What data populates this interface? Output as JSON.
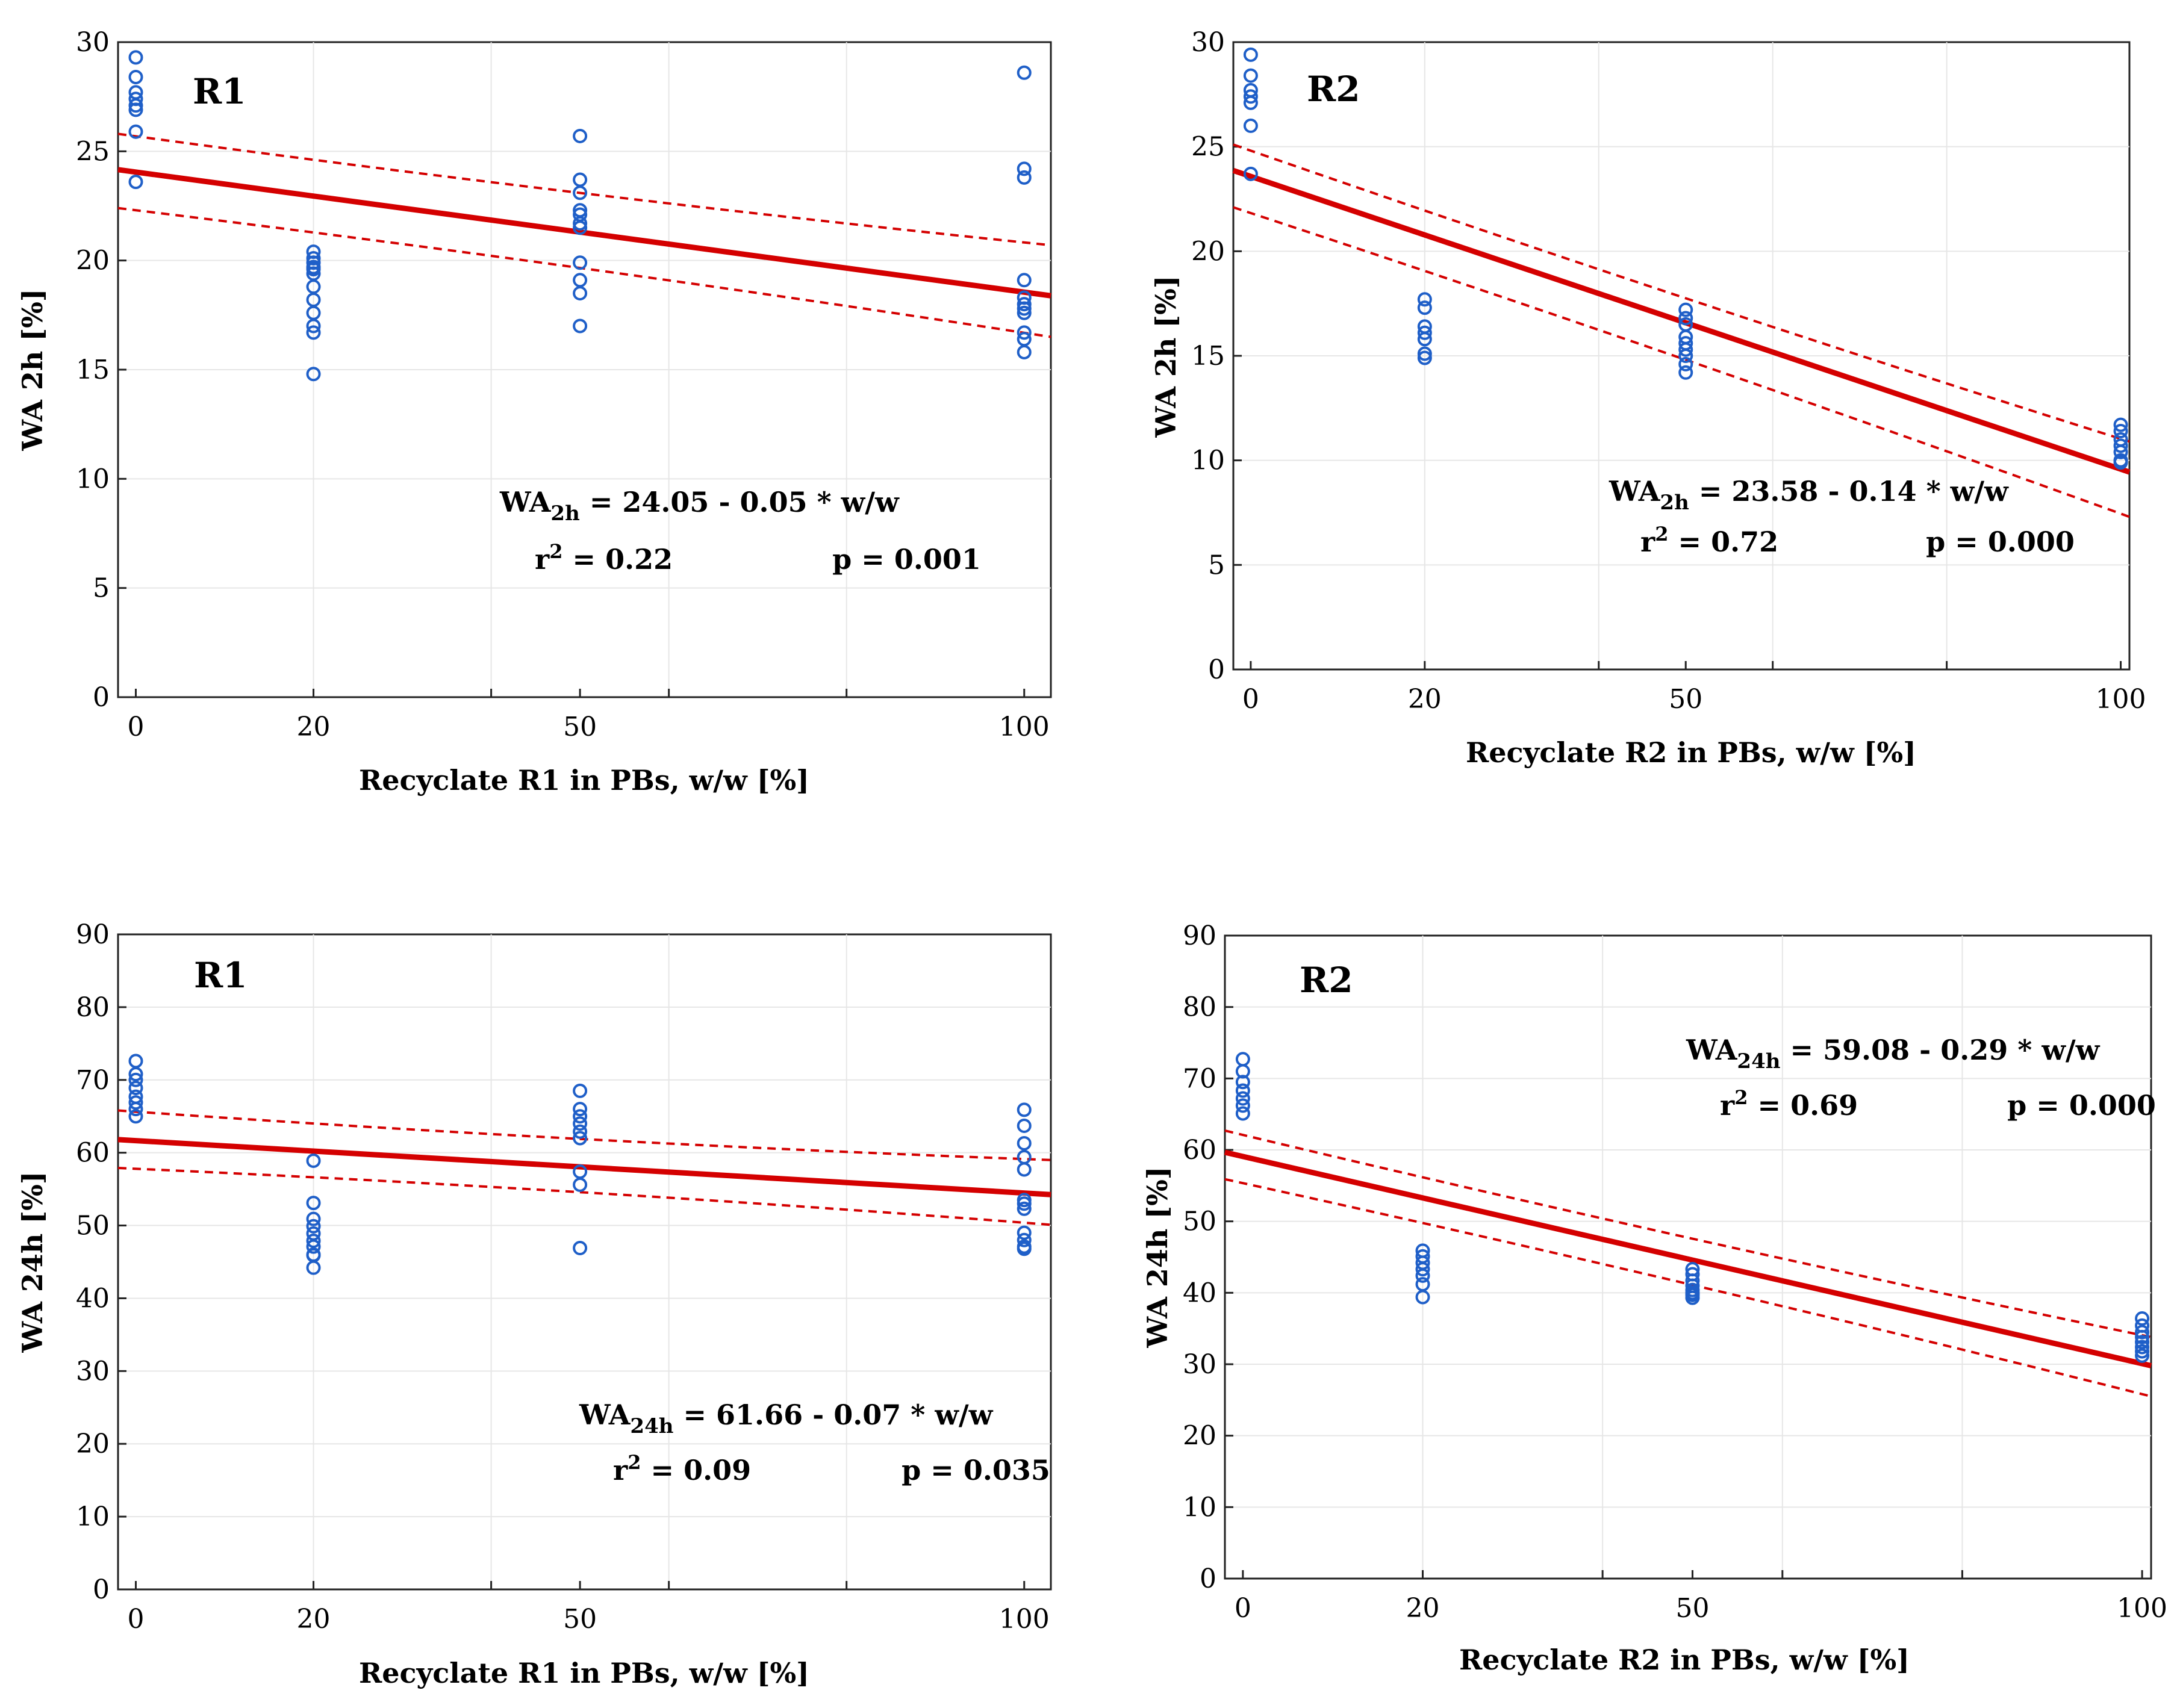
{
  "colors": {
    "fit": "#d40000",
    "ci": "#d40000",
    "points": "#1f5fc8",
    "grid": "#e6e6e6",
    "axis": "#222222"
  },
  "chart_data": [
    {
      "type": "scatter",
      "panel": "R1",
      "title": "R1",
      "xlabel": "Recyclate R1 in PBs, w/w  [%]",
      "ylabel": "WA  2h [%]",
      "xlim": [
        -2,
        103
      ],
      "ylim": [
        0,
        30
      ],
      "yticks": [
        0,
        5,
        10,
        15,
        20,
        25,
        30
      ],
      "xticks": [
        0,
        20,
        50,
        100
      ],
      "fit": {
        "intercept": 24.05,
        "slope": -0.055
      },
      "ci": {
        "upper": [
          25.8,
          20.7
        ],
        "lower": [
          22.4,
          16.5
        ]
      },
      "points": {
        "0": [
          29.3,
          28.4,
          27.7,
          27.4,
          27.1,
          26.9,
          25.9,
          23.6
        ],
        "20": [
          20.4,
          20.1,
          19.9,
          19.7,
          19.6,
          19.4,
          18.8,
          18.2,
          17.6,
          17.0,
          16.7,
          14.8
        ],
        "50": [
          25.7,
          23.7,
          23.1,
          22.3,
          22.1,
          21.7,
          21.5,
          19.9,
          19.1,
          18.5,
          17.0
        ],
        "100": [
          28.6,
          24.2,
          23.8,
          19.1,
          18.3,
          18.0,
          17.8,
          17.6,
          16.7,
          16.4,
          15.8
        ]
      },
      "equation": {
        "lhs": "WA",
        "sub": "2h",
        "rhs": " = 24.05 - 0.05 * w/w"
      },
      "stats": {
        "r": "r",
        "sup": "2",
        "r_value": " = 0.22",
        "p": "p = 0.001"
      }
    },
    {
      "type": "scatter",
      "panel": "R2",
      "title": "R2",
      "xlabel": "Recyclate R2 in PBs, w/w  [%]",
      "ylabel": "WA  2h [%]",
      "xlim": [
        -2,
        101
      ],
      "ylim": [
        0,
        30
      ],
      "yticks": [
        0,
        5,
        10,
        15,
        20,
        25,
        30
      ],
      "xticks": [
        0,
        20,
        50,
        100
      ],
      "fit": {
        "intercept": 23.58,
        "slope": -0.14
      },
      "ci": {
        "upper": [
          25.1,
          10.9
        ],
        "lower": [
          22.1,
          7.3
        ]
      },
      "points": {
        "0": [
          29.4,
          28.4,
          27.7,
          27.4,
          27.1,
          26.0,
          23.7
        ],
        "20": [
          17.7,
          17.3,
          16.4,
          16.1,
          15.8,
          15.1,
          14.9
        ],
        "50": [
          17.2,
          16.8,
          16.5,
          15.9,
          15.6,
          15.3,
          15.0,
          14.6,
          14.2
        ],
        "100": [
          11.7,
          11.4,
          11.0,
          10.7,
          10.4,
          10.0,
          9.9
        ]
      },
      "equation": {
        "lhs": "WA",
        "sub": "2h",
        "rhs": " = 23.58 - 0.14 * w/w"
      },
      "stats": {
        "r": "r",
        "sup": "2",
        "r_value": " = 0.72",
        "p": "p = 0.000"
      }
    },
    {
      "type": "scatter",
      "panel": "R1",
      "title": "R1",
      "xlabel": "Recyclate R1 in PBs, w/w  [%]",
      "ylabel": "WA  24h [%]",
      "xlim": [
        -2,
        103
      ],
      "ylim": [
        0,
        90
      ],
      "yticks": [
        0,
        10,
        20,
        30,
        40,
        50,
        60,
        70,
        80,
        90
      ],
      "xticks": [
        0,
        20,
        50,
        100
      ],
      "fit": {
        "intercept": 61.66,
        "slope": -0.072
      },
      "ci": {
        "upper": [
          65.8,
          59.0
        ],
        "lower": [
          57.9,
          50.1
        ]
      },
      "points": {
        "0": [
          72.6,
          70.8,
          70.0,
          68.9,
          67.7,
          66.9,
          66.0,
          65.0
        ],
        "20": [
          58.9,
          53.1,
          50.9,
          49.9,
          48.9,
          47.9,
          47.1,
          46.0,
          45.9,
          44.2
        ],
        "50": [
          68.5,
          66.0,
          65.0,
          64.0,
          62.9,
          62.0,
          57.4,
          55.6,
          46.9
        ],
        "100": [
          65.9,
          63.7,
          61.3,
          59.4,
          57.7,
          53.5,
          53.0,
          52.3,
          49.0,
          48.0,
          47.1,
          46.8
        ]
      },
      "equation": {
        "lhs": "WA",
        "sub": "24h",
        "rhs": " = 61.66 - 0.07 * w/w"
      },
      "stats": {
        "r": "r",
        "sup": "2",
        "r_value": " = 0.09",
        "p": "p = 0.035"
      }
    },
    {
      "type": "scatter",
      "panel": "R2",
      "title": "R2",
      "xlabel": "Recyclate R2 in PBs, w/w  [%]",
      "ylabel": "WA  24h [%]",
      "xlim": [
        -2,
        101
      ],
      "ylim": [
        0,
        90
      ],
      "yticks": [
        0,
        10,
        20,
        30,
        40,
        50,
        60,
        70,
        80,
        90
      ],
      "xticks": [
        0,
        20,
        50,
        100
      ],
      "fit": {
        "intercept": 59.08,
        "slope": -0.29
      },
      "ci": {
        "upper": [
          62.7,
          33.8
        ],
        "lower": [
          55.9,
          25.5
        ]
      },
      "points": {
        "0": [
          72.7,
          71.0,
          69.5,
          68.3,
          67.2,
          66.2,
          65.1
        ],
        "20": [
          45.9,
          45.1,
          44.2,
          43.3,
          42.4,
          41.2,
          39.4
        ],
        "50": [
          43.3,
          42.6,
          41.7,
          41.0,
          40.4,
          40.0,
          39.7,
          39.3
        ],
        "100": [
          36.4,
          35.4,
          34.5,
          33.8,
          33.1,
          32.4,
          31.8,
          31.2
        ]
      },
      "equation": {
        "lhs": "WA",
        "sub": "24h",
        "rhs": " = 59.08 - 0.29 * w/w"
      },
      "stats": {
        "r": "r",
        "sup": "2",
        "r_value": " = 0.69",
        "p": "p = 0.000"
      }
    }
  ]
}
